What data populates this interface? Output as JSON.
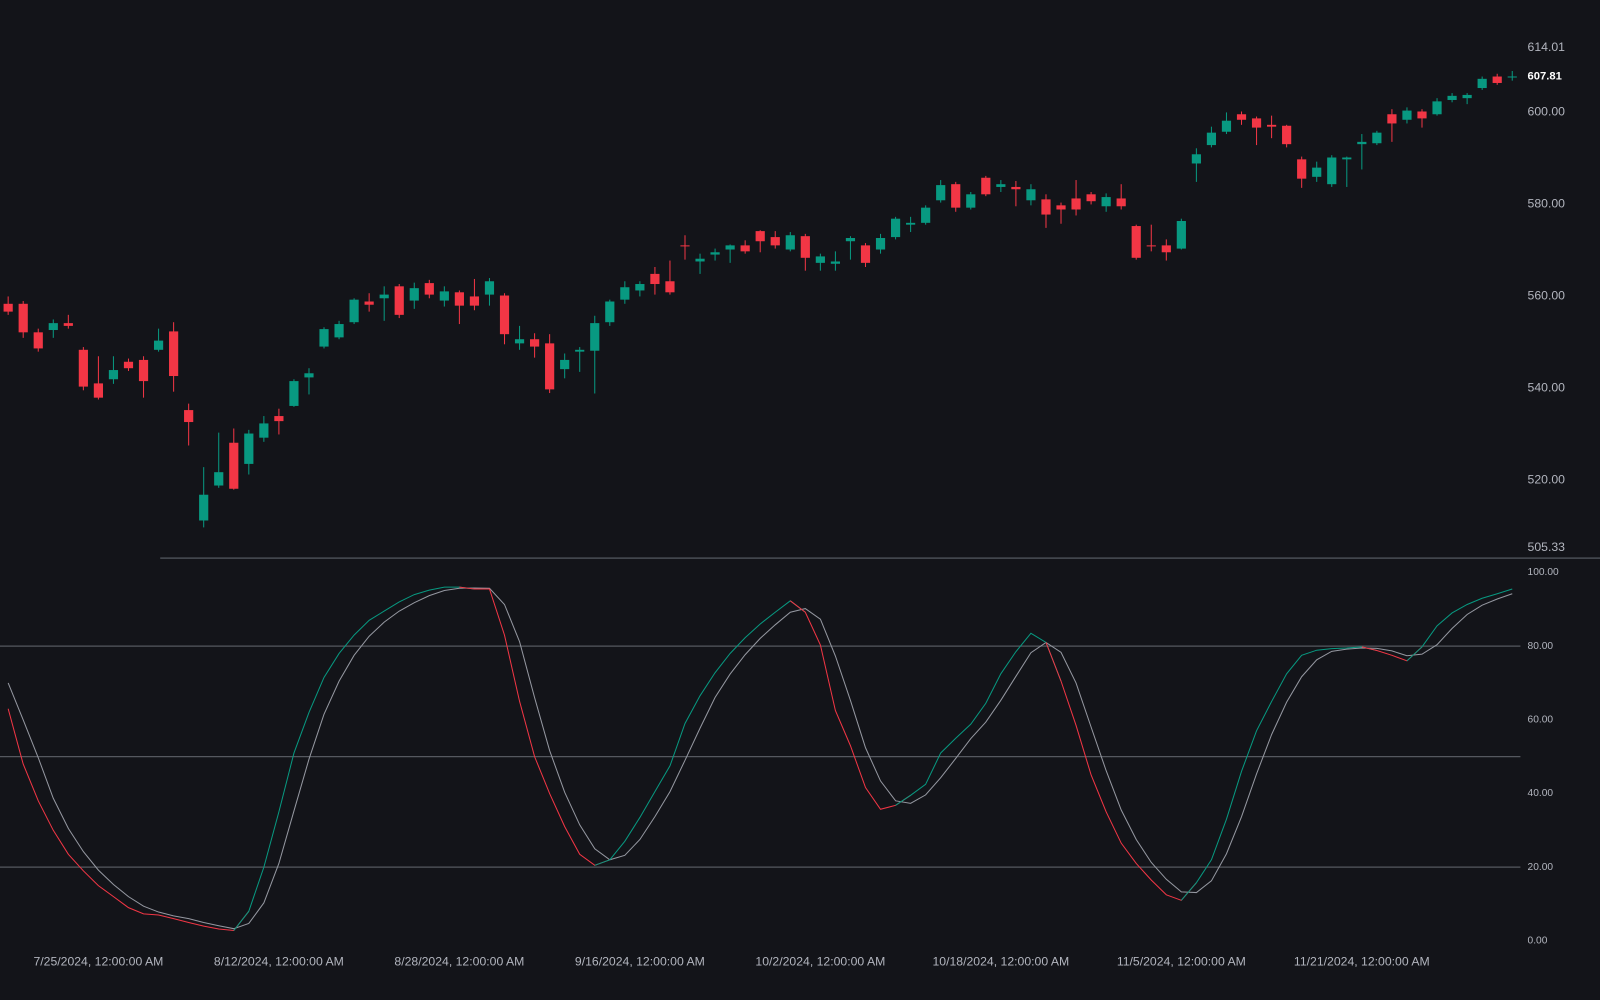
{
  "chart_data": [
    {
      "type": "candlestick",
      "categories": [
        null,
        null,
        null,
        null,
        null,
        null,
        "7/25/2024, 12:00:00 AM",
        null,
        null,
        null,
        null,
        null,
        null,
        null,
        null,
        null,
        null,
        null,
        "8/12/2024, 12:00:00 AM",
        null,
        null,
        null,
        null,
        null,
        null,
        null,
        null,
        null,
        null,
        null,
        "8/28/2024, 12:00:00 AM",
        null,
        null,
        null,
        null,
        null,
        null,
        null,
        null,
        null,
        null,
        null,
        "9/16/2024, 12:00:00 AM",
        null,
        null,
        null,
        null,
        null,
        null,
        null,
        null,
        null,
        null,
        null,
        "10/2/2024, 12:00:00 AM",
        null,
        null,
        null,
        null,
        null,
        null,
        null,
        null,
        null,
        null,
        null,
        "10/18/2024, 12:00:00 AM",
        null,
        null,
        null,
        null,
        null,
        null,
        null,
        null,
        null,
        null,
        null,
        "11/5/2024, 12:00:00 AM",
        null,
        null,
        null,
        null,
        null,
        null,
        null,
        null,
        null,
        null,
        null,
        "11/21/2024, 12:00:00 AM",
        null,
        null,
        null,
        null,
        null,
        null,
        null,
        null,
        null,
        null
      ],
      "open": [
        558.4,
        558.4,
        552.2,
        552.7,
        554.2,
        548.4,
        541.1,
        542,
        545.8,
        546.2,
        548.4,
        552.4,
        535.3,
        511.3,
        518.9,
        528.2,
        523.6,
        529.3,
        534,
        536.2,
        542.4,
        549.1,
        551.1,
        554.4,
        558.9,
        559.6,
        562.2,
        559.1,
        562.9,
        559.1,
        560.9,
        560,
        560.4,
        560.2,
        549.8,
        550.7,
        549.8,
        544.2,
        548,
        548.2,
        554.4,
        559.3,
        561.3,
        564.9,
        563.3,
        571.1,
        567.6,
        569.1,
        570.2,
        571.1,
        574.2,
        572.9,
        570.2,
        573.1,
        567.3,
        567.1,
        572,
        571.1,
        570.2,
        572.9,
        575.6,
        576,
        580.9,
        584.4,
        579.3,
        585.8,
        583.8,
        583.8,
        580.9,
        581.1,
        579.8,
        581.3,
        582.2,
        579.6,
        581.3,
        575.3,
        571.1,
        571.1,
        570.4,
        588.9,
        592.9,
        595.8,
        599.6,
        598.7,
        597.3,
        597.1,
        589.8,
        586,
        584.4,
        589.8,
        593.1,
        593.3,
        599.6,
        598.4,
        600.2,
        599.6,
        602.7,
        603.1,
        605.3,
        607.8,
        607.6
      ],
      "high": [
        560,
        559,
        553,
        555,
        556,
        549,
        547,
        547,
        546.5,
        547,
        553,
        554.4,
        536.7,
        522.9,
        530.4,
        531.3,
        531,
        534,
        535.6,
        542,
        544.4,
        553.3,
        554.7,
        559.6,
        560.7,
        562.2,
        562.7,
        563,
        563.6,
        562.2,
        561.3,
        563.8,
        564,
        560.7,
        553.6,
        552,
        551.8,
        547.6,
        549,
        555.8,
        559.3,
        563.3,
        563.3,
        566.4,
        567.8,
        573.3,
        569.3,
        570.4,
        571.3,
        572.2,
        574.4,
        574.2,
        574,
        573.6,
        569.3,
        569.8,
        573.1,
        571.6,
        573.6,
        577.3,
        577.3,
        579.8,
        585.3,
        584.9,
        582.7,
        586.2,
        585.3,
        585.1,
        584.4,
        582.2,
        580.4,
        585.3,
        582.7,
        582.4,
        584.4,
        575.6,
        575.6,
        572.4,
        576.9,
        592.2,
        596.9,
        600,
        600.2,
        599.1,
        599.3,
        597.3,
        590.4,
        589.3,
        590.7,
        590.4,
        595.3,
        596,
        600.7,
        601.1,
        600.7,
        603.1,
        604.2,
        604.2,
        607.8,
        608.4,
        609
      ],
      "low": [
        556,
        551,
        548,
        551,
        553,
        539.6,
        537.6,
        541,
        543.8,
        538,
        548,
        539.3,
        527.6,
        509.8,
        518.4,
        518,
        521.3,
        528.4,
        530,
        536,
        538.7,
        548.7,
        550.7,
        554,
        556.7,
        554.7,
        555.3,
        557.3,
        559.6,
        557.8,
        554,
        557,
        558,
        549.6,
        548.4,
        546.7,
        539,
        542.2,
        543.6,
        538.9,
        553.6,
        558.4,
        560,
        560.4,
        560.4,
        568,
        564.9,
        567.8,
        567.3,
        569.3,
        569.6,
        570.4,
        569.8,
        565.6,
        565.6,
        565.6,
        568,
        566.4,
        569.3,
        572.4,
        574,
        575.6,
        580.4,
        578.4,
        578.9,
        581.8,
        582.7,
        579.6,
        579.8,
        574.9,
        575.8,
        577.6,
        580,
        578.4,
        578.9,
        568,
        569.8,
        567.8,
        570.2,
        584.9,
        592.4,
        595.3,
        597.3,
        592.9,
        594.4,
        592.4,
        583.6,
        584.9,
        583.8,
        583.8,
        587.6,
        592.9,
        593.6,
        597.6,
        596.7,
        599.3,
        602.2,
        601.8,
        604.9,
        606,
        606.9
      ],
      "close": [
        556.7,
        552.2,
        548.7,
        554.2,
        553.6,
        540.4,
        538,
        544,
        544.4,
        541.6,
        550.4,
        542.7,
        532.7,
        516.9,
        521.8,
        518.2,
        530.2,
        532.4,
        532.9,
        541.6,
        543.3,
        552.9,
        554,
        559.3,
        558.2,
        560.4,
        556,
        561.8,
        560.4,
        561.1,
        558,
        558,
        563.3,
        551.8,
        550.7,
        549.1,
        539.8,
        546.2,
        548.4,
        554.2,
        558.9,
        562,
        562.7,
        562.7,
        560.9,
        570.9,
        568.2,
        569.6,
        571.1,
        569.8,
        572,
        571.1,
        573.3,
        568.4,
        568.7,
        567.6,
        572.7,
        567.3,
        572.7,
        576.9,
        576,
        579.3,
        584.2,
        579.3,
        582.2,
        582.2,
        584.4,
        583.3,
        583.3,
        577.8,
        578.9,
        578.9,
        580.7,
        581.6,
        579.6,
        568.4,
        570.9,
        569.6,
        576.4,
        590.9,
        595.6,
        598.2,
        598.4,
        596.7,
        596.9,
        593.1,
        585.6,
        588,
        590.2,
        590.2,
        593.6,
        595.6,
        597.6,
        600.4,
        598.7,
        602.4,
        603.6,
        603.8,
        607.3,
        606.4,
        607.81
      ],
      "up_color": "#089981",
      "down_color": "#f23645",
      "ylim": [
        505.33,
        614.01
      ],
      "yticks": [
        505.33,
        614.01,
        {
          "value": 520,
          "label": "520.00"
        },
        {
          "value": 540,
          "label": "540.00"
        },
        {
          "value": 560,
          "label": "560.00"
        },
        {
          "value": 580,
          "label": "580.00"
        },
        {
          "value": 600,
          "label": "600.00"
        }
      ],
      "last_price": 607.81,
      "grid": false
    },
    {
      "type": "line",
      "series": [
        {
          "color": "#089981",
          "down_color": "#f23645",
          "values": [
            63,
            48,
            38,
            30,
            23.5,
            19,
            15,
            12,
            9,
            7.3,
            7,
            6,
            5,
            4,
            3.2,
            2.8,
            8,
            20,
            35,
            51,
            62,
            71.5,
            78,
            83,
            87,
            89.5,
            92,
            94,
            95.2,
            96,
            96,
            95.5,
            95.5,
            83,
            65,
            50,
            40,
            31,
            23.5,
            20.5,
            22,
            27,
            33.5,
            40.5,
            47.5,
            59,
            66.5,
            72.8,
            78,
            82.3,
            86,
            89.2,
            92.3,
            89.2,
            80.3,
            62.5,
            53,
            41.6,
            35.7,
            36.8,
            39.5,
            42.5,
            51,
            55,
            58.8,
            64.5,
            72.5,
            78.5,
            83.5,
            81,
            70.5,
            58.5,
            45,
            35,
            26.5,
            21,
            16.5,
            12.5,
            11,
            15.8,
            22,
            33,
            46,
            57,
            65,
            72.5,
            77.5,
            78.9,
            79.3,
            79.5,
            79.8,
            78.8,
            77.5,
            76,
            79.8,
            85.5,
            89,
            91.3,
            93,
            94.2,
            95.5
          ]
        },
        {
          "color": "#9598a1",
          "values": [
            70,
            60,
            49.7,
            38.7,
            30.5,
            24.2,
            19.2,
            15.3,
            12,
            9.4,
            7.8,
            6.8,
            6,
            5,
            4.1,
            3.3,
            4.7,
            10.3,
            21,
            35.3,
            49.3,
            61.5,
            70.5,
            77.5,
            82.7,
            86.5,
            89.5,
            91.8,
            93.7,
            95.1,
            95.7,
            95.8,
            95.7,
            91.3,
            81.2,
            66,
            51.7,
            40.3,
            31.5,
            25,
            22,
            23.2,
            27.5,
            33.7,
            40.5,
            49,
            57.7,
            66.1,
            72.4,
            77.7,
            82.1,
            85.8,
            89.2,
            90.2,
            87.3,
            77.3,
            65.3,
            52.4,
            43.4,
            38,
            37.3,
            39.6,
            44.3,
            49.5,
            54.9,
            59.4,
            65.3,
            71.8,
            78.2,
            81,
            78.3,
            70,
            58,
            46.2,
            35.5,
            27.5,
            21.3,
            16.7,
            13.3,
            13.1,
            16.3,
            23.6,
            33.7,
            45.3,
            56,
            64.8,
            71.7,
            76.3,
            78.6,
            79.2,
            79.5,
            79.4,
            78.7,
            77.4,
            77.8,
            80.4,
            84.8,
            88.6,
            91.1,
            92.8,
            94.2
          ]
        }
      ],
      "ylim": [
        0,
        100
      ],
      "yticks": [
        {
          "value": 0,
          "label": "0.00"
        },
        {
          "value": 20,
          "label": "20.00"
        },
        {
          "value": 40,
          "label": "40.00"
        },
        {
          "value": 60,
          "label": "60.00"
        },
        {
          "value": 80,
          "label": "80.00"
        },
        {
          "value": 100,
          "label": "100.00"
        }
      ],
      "levels": [
        80,
        50,
        20
      ],
      "grid": false
    }
  ]
}
